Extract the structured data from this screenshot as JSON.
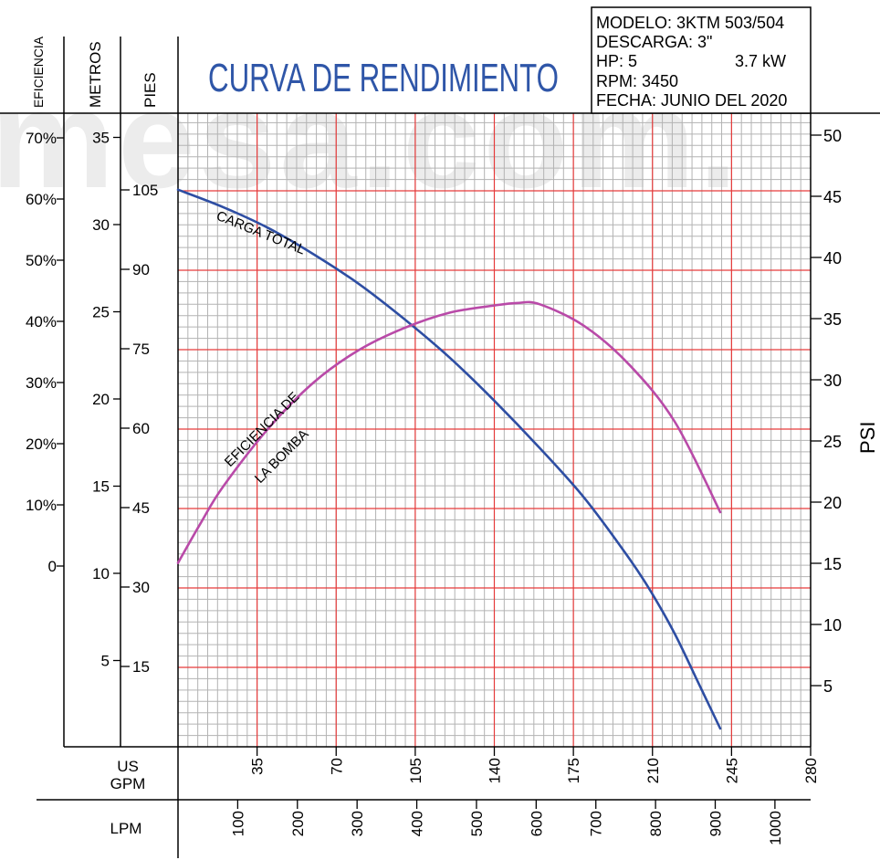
{
  "watermark": "mesa.com.",
  "title": "CURVA DE RENDIMIENTO",
  "info": {
    "modelo": "MODELO: 3KTM 503/504",
    "descarga": "DESCARGA: 3\"",
    "hp": "HP: 5",
    "kw": "3.7 kW",
    "rpm": "RPM: 3450",
    "fecha": "FECHA: JUNIO DEL 2020"
  },
  "axis_headers": {
    "eficiencia": "EFICIENCIA",
    "metros": "METROS",
    "pies": "PIES",
    "psi": "PSI",
    "gpm": [
      "US",
      "GPM"
    ],
    "lpm": "LPM"
  },
  "curve_labels": {
    "carga": "CARGA TOTAL",
    "eficiencia": [
      "EFICIENCIA DE",
      "LA BOMBA"
    ]
  },
  "chart_data": {
    "type": "line",
    "title": "CURVA DE RENDIMIENTO",
    "xlabel": "US GPM",
    "x2label": "LPM",
    "xlim": [
      0,
      280
    ],
    "grid": true,
    "series": [
      {
        "name": "CARGA TOTAL",
        "axis": "METROS",
        "color": "#2e4ea3",
        "x": [
          0,
          20,
          40,
          60,
          80,
          100,
          120,
          140,
          160,
          180,
          200,
          210,
          220,
          230,
          240
        ],
        "y": [
          32.0,
          31.0,
          29.8,
          28.3,
          26.6,
          24.6,
          22.4,
          19.9,
          17.2,
          14.3,
          10.8,
          8.8,
          6.5,
          3.8,
          1.1
        ]
      },
      {
        "name": "EFICIENCIA DE LA BOMBA",
        "axis": "EFICIENCIA",
        "color": "#b94aa8",
        "x": [
          0,
          10,
          20,
          40,
          60,
          80,
          100,
          120,
          140,
          150,
          160,
          180,
          200,
          220,
          240
        ],
        "y": [
          0.5,
          7.0,
          13.0,
          22.5,
          30.0,
          35.3,
          38.9,
          41.4,
          42.6,
          43.0,
          42.8,
          39.2,
          32.8,
          23.5,
          8.8
        ]
      }
    ],
    "axes": {
      "eficiencia": {
        "ticks": [
          0,
          10,
          20,
          30,
          40,
          50,
          60,
          70
        ],
        "labels": [
          "0",
          "10%",
          "20%",
          "30%",
          "40%",
          "50%",
          "60%",
          "70%"
        ]
      },
      "metros": {
        "ticks": [
          5,
          10,
          15,
          20,
          25,
          30,
          35
        ],
        "labels": [
          "5",
          "10",
          "15",
          "20",
          "25",
          "30",
          "35"
        ]
      },
      "pies": {
        "ticks": [
          15,
          30,
          45,
          60,
          75,
          90,
          105
        ],
        "labels": [
          "15",
          "30",
          "45",
          "60",
          "75",
          "90",
          "105"
        ]
      },
      "psi": {
        "ticks": [
          5,
          10,
          15,
          20,
          25,
          30,
          35,
          40,
          45,
          50
        ],
        "labels": [
          "5",
          "10",
          "15",
          "20",
          "25",
          "30",
          "35",
          "40",
          "45",
          "50"
        ]
      },
      "gpm": {
        "ticks": [
          35,
          70,
          105,
          140,
          175,
          210,
          245,
          280
        ],
        "labels": [
          "35",
          "70",
          "105",
          "140",
          "175",
          "210",
          "245",
          "280"
        ]
      },
      "lpm": {
        "ticks": [
          100,
          200,
          300,
          400,
          500,
          600,
          700,
          800,
          900,
          1000
        ],
        "labels": [
          "100",
          "200",
          "300",
          "400",
          "500",
          "600",
          "700",
          "800",
          "900",
          "1000"
        ]
      }
    }
  }
}
